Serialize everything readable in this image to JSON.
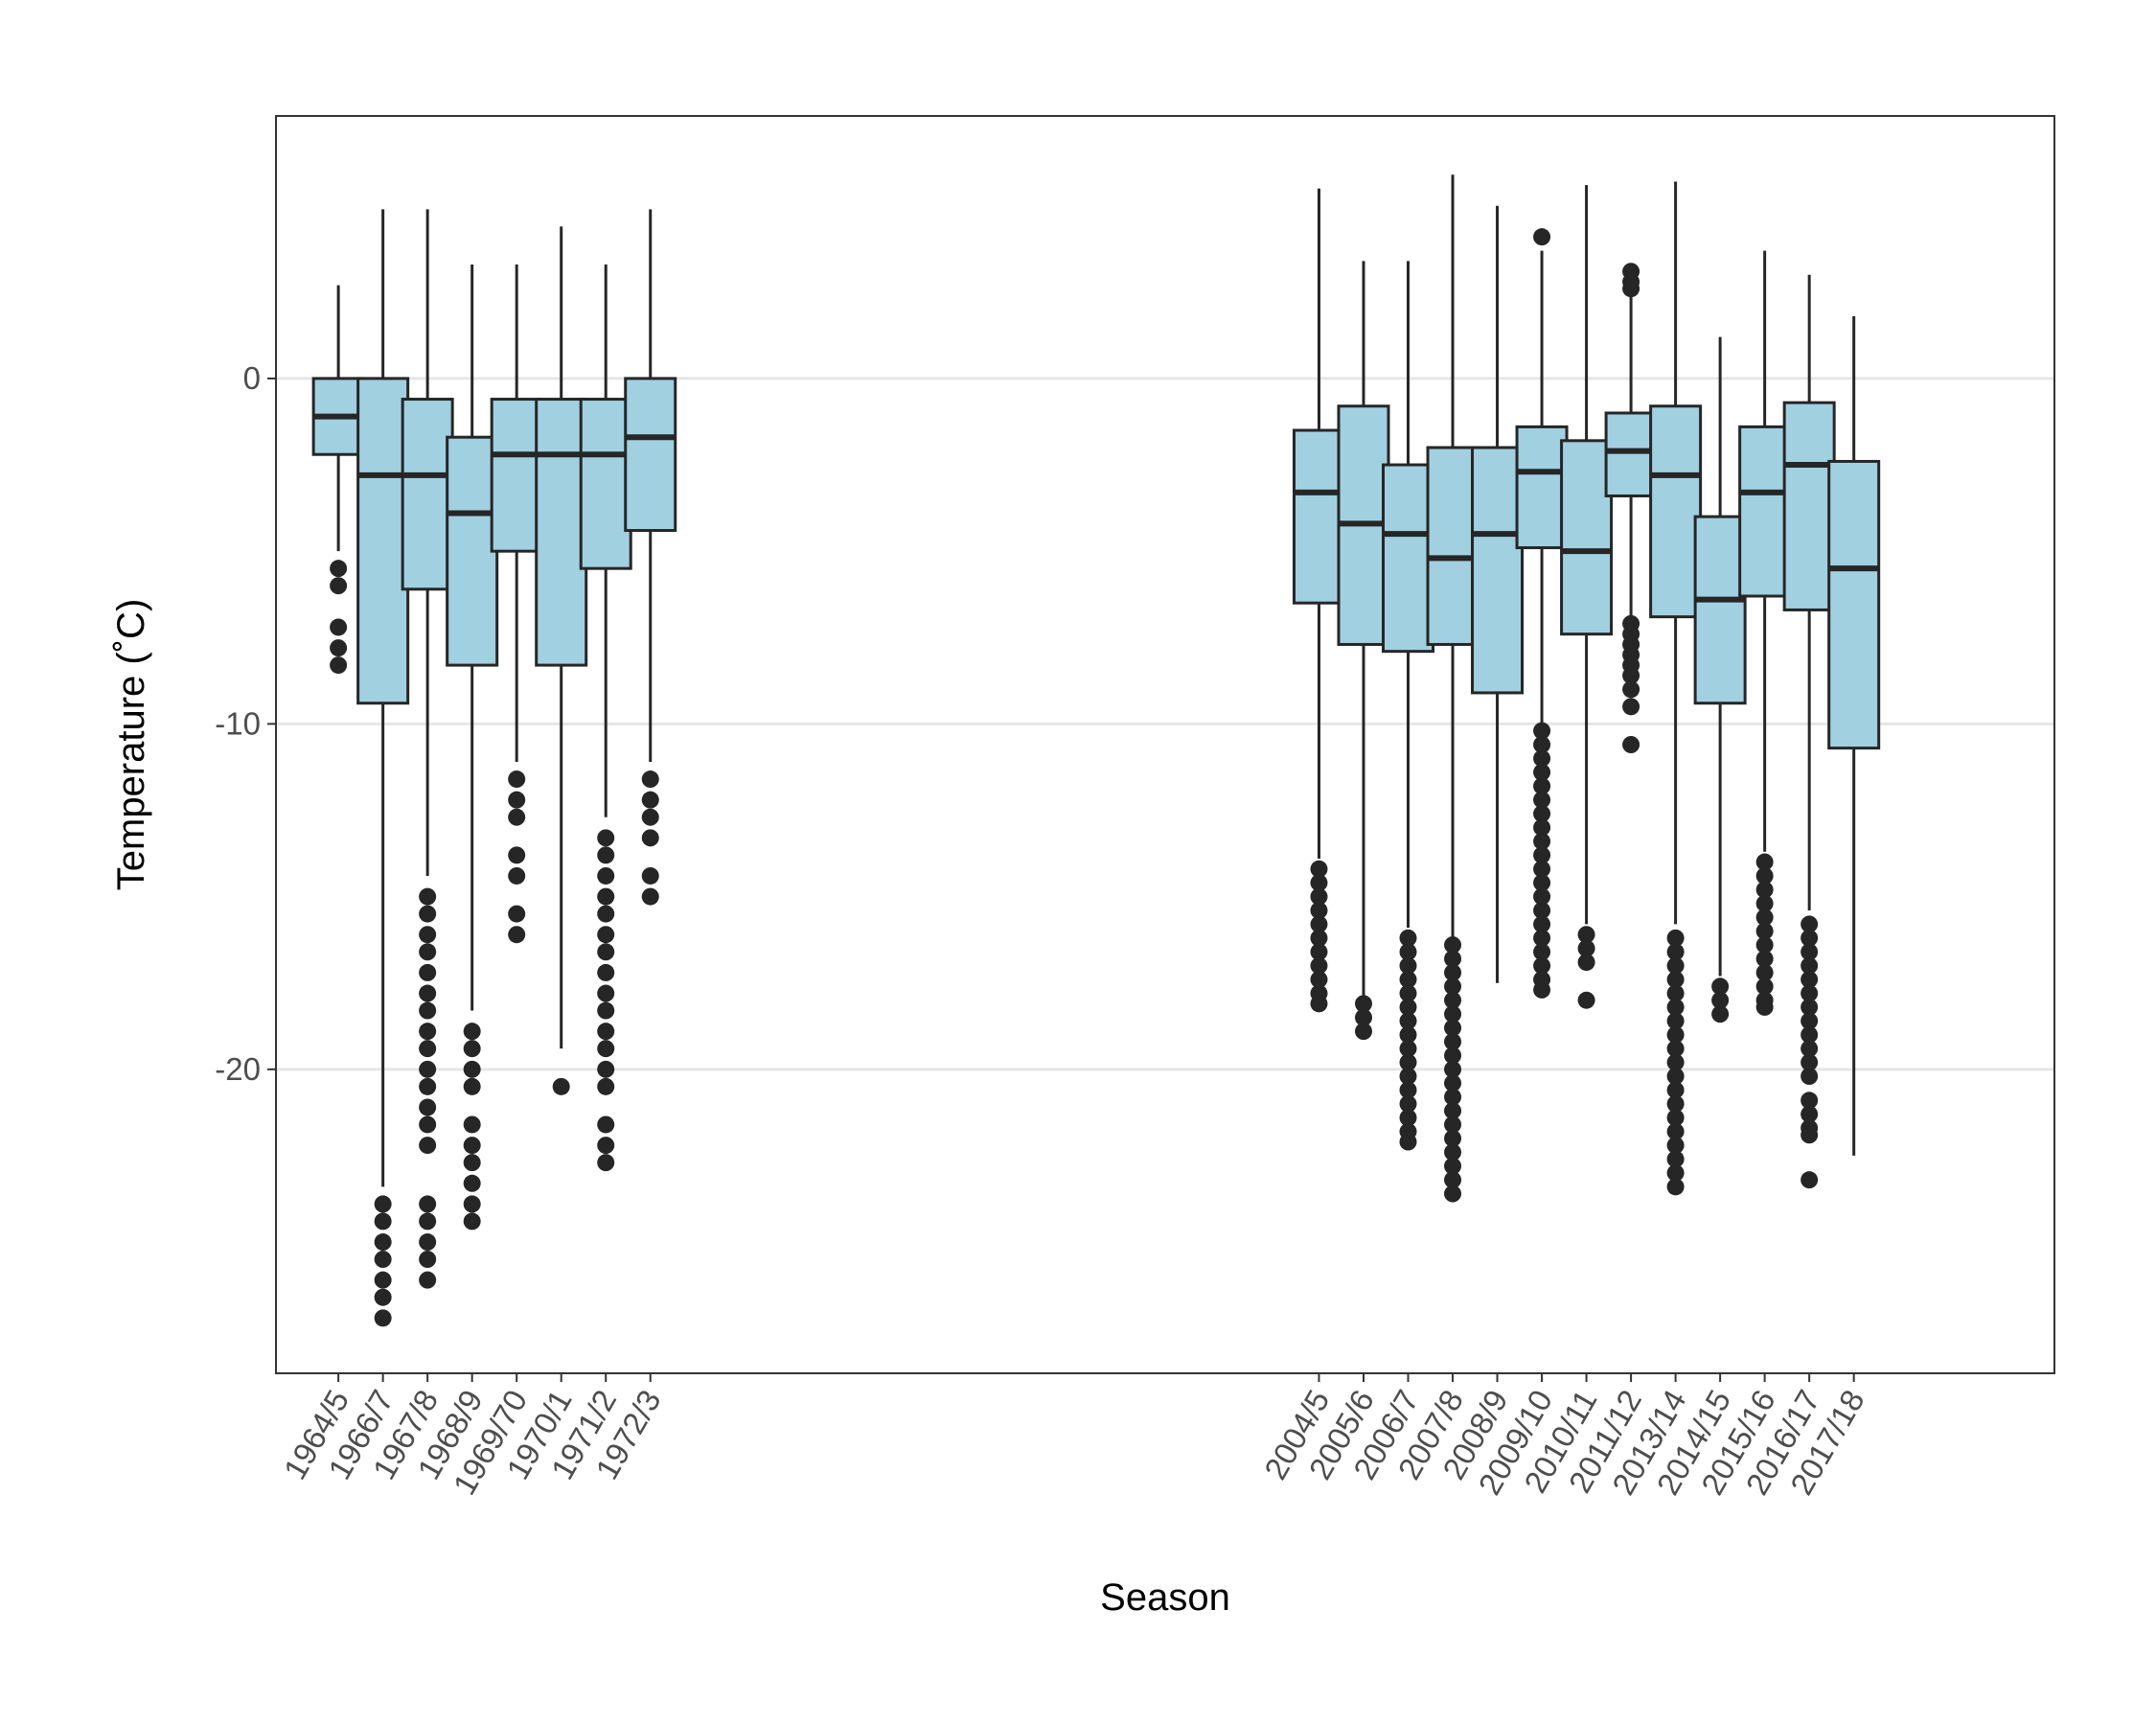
{
  "chart_data": {
    "type": "boxplot",
    "xlabel": "Season",
    "ylabel": "Temperature (˚C)",
    "ylim": [
      -28.8,
      7.6
    ],
    "y_ticks": [
      0,
      -10,
      -20
    ],
    "x_range": [
      -0.4,
      39.5
    ],
    "grid": "major horizontal only",
    "legend": "none",
    "colors": {
      "box_fill": "#a1d0e1",
      "box_stroke": "#262626",
      "grid": "#e6e6e6",
      "panel_border": "#333333"
    },
    "categories": [
      {
        "label": "1964/5",
        "x": 1,
        "q1": -2.2,
        "median": -1.1,
        "q3": 0.0,
        "whisker_low": -5.0,
        "whisker_high": 2.7,
        "outliers": [
          -5.5,
          -6.0,
          -7.2,
          -7.8,
          -8.3
        ]
      },
      {
        "label": "1966/7",
        "x": 2,
        "q1": -9.4,
        "median": -2.8,
        "q3": 0.0,
        "whisker_low": -23.4,
        "whisker_high": 4.9,
        "outliers": [
          -23.9,
          -24.4,
          -25.0,
          -25.5,
          -26.1,
          -26.6,
          -27.2
        ]
      },
      {
        "label": "1967/8",
        "x": 3,
        "q1": -6.1,
        "median": -2.8,
        "q3": -0.6,
        "whisker_low": -14.4,
        "whisker_high": 4.9,
        "outliers": [
          -15.0,
          -15.5,
          -16.1,
          -16.6,
          -17.2,
          -17.8,
          -18.3,
          -18.9,
          -19.4,
          -20.0,
          -20.5,
          -21.1,
          -21.6,
          -22.2,
          -23.9,
          -24.4,
          -25.0,
          -25.5,
          -26.1
        ]
      },
      {
        "label": "1968/9",
        "x": 4,
        "q1": -8.3,
        "median": -3.9,
        "q3": -1.7,
        "whisker_low": -18.3,
        "whisker_high": 3.3,
        "outliers": [
          -18.9,
          -19.4,
          -20.0,
          -20.5,
          -21.6,
          -22.2,
          -22.7,
          -23.3,
          -23.9,
          -24.4
        ]
      },
      {
        "label": "1969/70",
        "x": 5,
        "q1": -5.0,
        "median": -2.2,
        "q3": -0.6,
        "whisker_low": -11.1,
        "whisker_high": 3.3,
        "outliers": [
          -11.6,
          -12.2,
          -12.7,
          -13.8,
          -14.4,
          -15.5,
          -16.1
        ]
      },
      {
        "label": "1970/1",
        "x": 6,
        "q1": -8.3,
        "median": -2.2,
        "q3": -0.6,
        "whisker_low": -19.4,
        "whisker_high": 4.4,
        "outliers": [
          -20.5
        ]
      },
      {
        "label": "1971/2",
        "x": 7,
        "q1": -5.5,
        "median": -2.2,
        "q3": -0.6,
        "whisker_low": -12.7,
        "whisker_high": 3.3,
        "outliers": [
          -13.3,
          -13.8,
          -14.4,
          -15.0,
          -15.5,
          -16.1,
          -16.6,
          -17.2,
          -17.8,
          -18.3,
          -18.9,
          -19.4,
          -20.0,
          -20.5,
          -21.6,
          -22.2,
          -22.7
        ]
      },
      {
        "label": "1972/3",
        "x": 8,
        "q1": -4.4,
        "median": -1.7,
        "q3": 0.0,
        "whisker_low": -11.1,
        "whisker_high": 4.9,
        "outliers": [
          -11.6,
          -12.2,
          -12.7,
          -13.3,
          -14.4,
          -15.0
        ]
      },
      {
        "label": "2004/5",
        "x": 23,
        "q1": -6.5,
        "median": -3.3,
        "q3": -1.5,
        "whisker_low": -13.9,
        "whisker_high": 5.5,
        "outliers": [
          -14.2,
          -14.6,
          -15.0,
          -15.4,
          -15.8,
          -16.2,
          -16.6,
          -17.0,
          -17.4,
          -17.8,
          -18.1
        ]
      },
      {
        "label": "2005/6",
        "x": 24,
        "q1": -7.7,
        "median": -4.2,
        "q3": -0.8,
        "whisker_low": -17.9,
        "whisker_high": 3.4,
        "outliers": [
          -18.1,
          -18.5,
          -18.9
        ]
      },
      {
        "label": "2006/7",
        "x": 25,
        "q1": -7.9,
        "median": -4.5,
        "q3": -2.5,
        "whisker_low": -15.9,
        "whisker_high": 3.4,
        "outliers": [
          -16.2,
          -16.6,
          -17.0,
          -17.4,
          -17.8,
          -18.2,
          -18.6,
          -19.0,
          -19.4,
          -19.8,
          -20.2,
          -20.6,
          -21.0,
          -21.4,
          -21.8,
          -22.1
        ]
      },
      {
        "label": "2007/8",
        "x": 26,
        "q1": -7.7,
        "median": -5.2,
        "q3": -2.0,
        "whisker_low": -16.2,
        "whisker_high": 5.9,
        "outliers": [
          -16.4,
          -16.8,
          -17.2,
          -17.6,
          -18.0,
          -18.4,
          -18.8,
          -19.2,
          -19.6,
          -20.0,
          -20.4,
          -20.8,
          -21.2,
          -21.6,
          -22.0,
          -22.4,
          -22.8,
          -23.2,
          -23.6
        ]
      },
      {
        "label": "2008/9",
        "x": 27,
        "q1": -9.1,
        "median": -4.5,
        "q3": -2.0,
        "whisker_low": -17.5,
        "whisker_high": 5.0,
        "outliers": []
      },
      {
        "label": "2009/10",
        "x": 28,
        "q1": -4.9,
        "median": -2.7,
        "q3": -1.4,
        "whisker_low": -10.0,
        "whisker_high": 3.7,
        "outliers": [
          4.1,
          -10.2,
          -10.6,
          -11.0,
          -11.4,
          -11.8,
          -12.2,
          -12.6,
          -13.0,
          -13.4,
          -13.8,
          -14.2,
          -14.6,
          -15.0,
          -15.4,
          -15.8,
          -16.2,
          -16.6,
          -17.0,
          -17.4,
          -17.7
        ]
      },
      {
        "label": "2010/11",
        "x": 29,
        "q1": -7.4,
        "median": -5.0,
        "q3": -1.8,
        "whisker_low": -15.8,
        "whisker_high": 5.6,
        "outliers": [
          -16.1,
          -16.5,
          -16.9,
          -18.0
        ]
      },
      {
        "label": "2011/12",
        "x": 30,
        "q1": -3.4,
        "median": -2.1,
        "q3": -1.0,
        "whisker_low": -6.9,
        "whisker_high": 2.4,
        "outliers": [
          3.1,
          2.8,
          2.6,
          -7.1,
          -7.4,
          -7.7,
          -8.0,
          -8.3,
          -8.6,
          -9.0,
          -9.5,
          -10.6
        ]
      },
      {
        "label": "2013/14",
        "x": 31,
        "q1": -6.9,
        "median": -2.8,
        "q3": -0.8,
        "whisker_low": -15.8,
        "whisker_high": 5.7,
        "outliers": [
          -16.2,
          -16.6,
          -17.0,
          -17.4,
          -17.8,
          -18.2,
          -18.6,
          -19.0,
          -19.4,
          -19.8,
          -20.2,
          -20.6,
          -21.0,
          -21.4,
          -21.8,
          -22.2,
          -22.6,
          -23.0,
          -23.4
        ]
      },
      {
        "label": "2014/15",
        "x": 32,
        "q1": -9.4,
        "median": -6.4,
        "q3": -4.0,
        "whisker_low": -17.3,
        "whisker_high": 1.2,
        "outliers": [
          -17.6,
          -18.0,
          -18.4
        ]
      },
      {
        "label": "2015/16",
        "x": 33,
        "q1": -6.3,
        "median": -3.3,
        "q3": -1.4,
        "whisker_low": -13.7,
        "whisker_high": 3.7,
        "outliers": [
          -14.0,
          -14.4,
          -14.8,
          -15.2,
          -15.6,
          -16.0,
          -16.4,
          -16.8,
          -17.2,
          -17.6,
          -18.0,
          -18.2
        ]
      },
      {
        "label": "2016/17",
        "x": 34,
        "q1": -6.7,
        "median": -2.5,
        "q3": -0.7,
        "whisker_low": -15.4,
        "whisker_high": 3.0,
        "outliers": [
          -15.8,
          -16.2,
          -16.6,
          -17.0,
          -17.4,
          -17.8,
          -18.2,
          -18.6,
          -19.0,
          -19.4,
          -19.8,
          -20.2,
          -20.9,
          -21.3,
          -21.7,
          -21.9,
          -23.2
        ]
      },
      {
        "label": "2017/18",
        "x": 35,
        "q1": -10.7,
        "median": -5.5,
        "q3": -2.4,
        "whisker_low": -22.5,
        "whisker_high": 1.8,
        "outliers": []
      }
    ]
  }
}
